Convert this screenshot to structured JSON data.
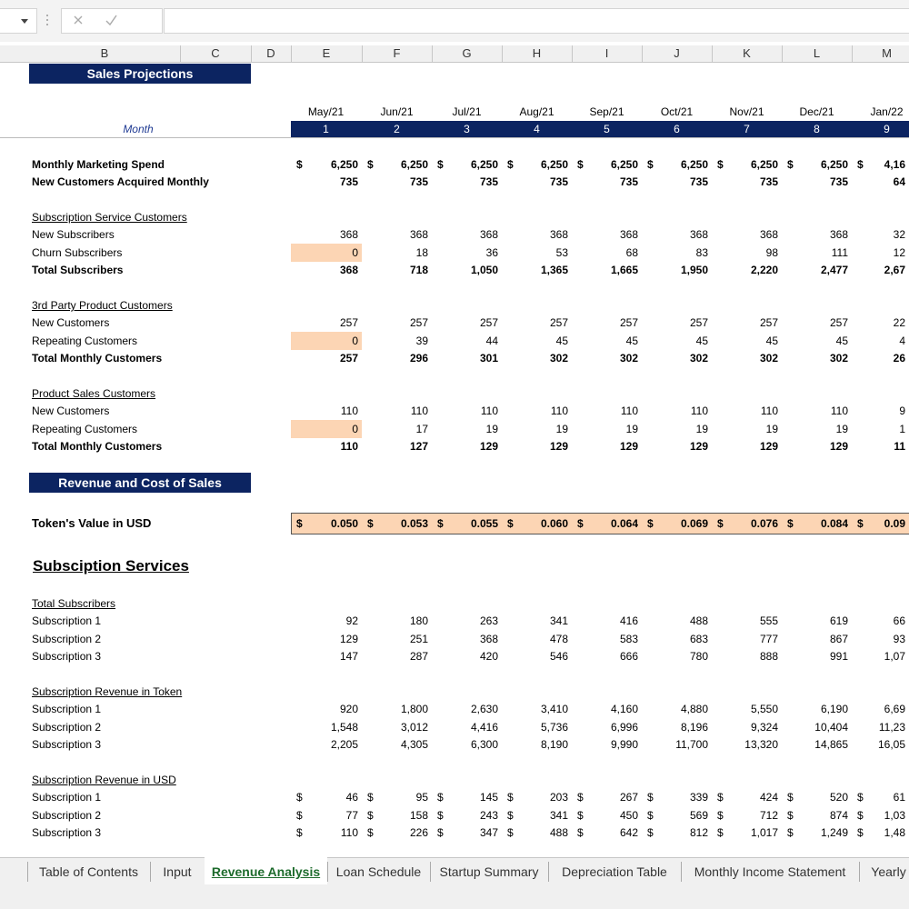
{
  "formula_bar": {
    "function_icon": "fx"
  },
  "column_headers": [
    "B",
    "C",
    "D",
    "E",
    "F",
    "G",
    "H",
    "I",
    "J",
    "K",
    "L",
    "M"
  ],
  "sales_header": "Sales Projections",
  "month_label": "Month",
  "months": [
    "May/21",
    "Jun/21",
    "Jul/21",
    "Aug/21",
    "Sep/21",
    "Oct/21",
    "Nov/21",
    "Dec/21",
    "Jan/22"
  ],
  "month_numbers": [
    1,
    2,
    3,
    4,
    5,
    6,
    7,
    8,
    9
  ],
  "currency_symbol": "$",
  "marketing": {
    "rows": [
      {
        "label": "Monthly Marketing Spend",
        "values": [
          "6,250",
          "6,250",
          "6,250",
          "6,250",
          "6,250",
          "6,250",
          "6,250",
          "6,250",
          "4,16"
        ]
      },
      {
        "label": "New Customers Acquired Monthly",
        "values": [
          "735",
          "735",
          "735",
          "735",
          "735",
          "735",
          "735",
          "735",
          "64"
        ]
      }
    ]
  },
  "customer_groups": [
    {
      "heading": "Subscription Service Customers",
      "rows": [
        {
          "label": "New Subscribers",
          "values": [
            "368",
            "368",
            "368",
            "368",
            "368",
            "368",
            "368",
            "368",
            "32"
          ]
        },
        {
          "label": "Churn Subscribers",
          "values": [
            "0",
            "18",
            "36",
            "53",
            "68",
            "83",
            "98",
            "111",
            "12"
          ]
        },
        {
          "label": "Total Subscribers",
          "values": [
            "368",
            "718",
            "1,050",
            "1,365",
            "1,665",
            "1,950",
            "2,220",
            "2,477",
            "2,67"
          ]
        }
      ]
    },
    {
      "heading": "3rd Party Product Customers",
      "rows": [
        {
          "label": "New Customers",
          "values": [
            "257",
            "257",
            "257",
            "257",
            "257",
            "257",
            "257",
            "257",
            "22"
          ]
        },
        {
          "label": "Repeating Customers",
          "values": [
            "0",
            "39",
            "44",
            "45",
            "45",
            "45",
            "45",
            "45",
            "4"
          ]
        },
        {
          "label": "Total Monthly Customers",
          "values": [
            "257",
            "296",
            "301",
            "302",
            "302",
            "302",
            "302",
            "302",
            "26"
          ]
        }
      ]
    },
    {
      "heading": "Product Sales Customers",
      "rows": [
        {
          "label": "New Customers",
          "values": [
            "110",
            "110",
            "110",
            "110",
            "110",
            "110",
            "110",
            "110",
            "9"
          ]
        },
        {
          "label": "Repeating Customers",
          "values": [
            "0",
            "17",
            "19",
            "19",
            "19",
            "19",
            "19",
            "19",
            "1"
          ]
        },
        {
          "label": "Total Monthly Customers",
          "values": [
            "110",
            "127",
            "129",
            "129",
            "129",
            "129",
            "129",
            "129",
            "11"
          ]
        }
      ]
    }
  ],
  "revenue_header": "Revenue and Cost of Sales",
  "token": {
    "label": "Token's Value in USD",
    "values": [
      "0.050",
      "0.053",
      "0.055",
      "0.060",
      "0.064",
      "0.069",
      "0.076",
      "0.084",
      "0.09"
    ]
  },
  "subscription_title": "Subsciption Services",
  "subscription_groups": [
    {
      "heading": "Total Subscribers",
      "rows": [
        {
          "label": "Subscription 1",
          "values": [
            "92",
            "180",
            "263",
            "341",
            "416",
            "488",
            "555",
            "619",
            "66"
          ]
        },
        {
          "label": "Subscription 2",
          "values": [
            "129",
            "251",
            "368",
            "478",
            "583",
            "683",
            "777",
            "867",
            "93"
          ]
        },
        {
          "label": "Subscription 3",
          "values": [
            "147",
            "287",
            "420",
            "546",
            "666",
            "780",
            "888",
            "991",
            "1,07"
          ]
        }
      ]
    },
    {
      "heading": "Subscription Revenue in Token",
      "rows": [
        {
          "label": "Subscription 1",
          "values": [
            "920",
            "1,800",
            "2,630",
            "3,410",
            "4,160",
            "4,880",
            "5,550",
            "6,190",
            "6,69"
          ]
        },
        {
          "label": "Subscription 2",
          "values": [
            "1,548",
            "3,012",
            "4,416",
            "5,736",
            "6,996",
            "8,196",
            "9,324",
            "10,404",
            "11,23"
          ]
        },
        {
          "label": "Subscription 3",
          "values": [
            "2,205",
            "4,305",
            "6,300",
            "8,190",
            "9,990",
            "11,700",
            "13,320",
            "14,865",
            "16,05"
          ]
        }
      ]
    },
    {
      "heading": "Subscription Revenue in USD",
      "rows": [
        {
          "label": "Subscription 1",
          "values": [
            "46",
            "95",
            "145",
            "203",
            "267",
            "339",
            "424",
            "520",
            "61"
          ]
        },
        {
          "label": "Subscription 2",
          "values": [
            "77",
            "158",
            "243",
            "341",
            "450",
            "569",
            "712",
            "874",
            "1,03"
          ]
        },
        {
          "label": "Subscription 3",
          "values": [
            "110",
            "226",
            "347",
            "488",
            "642",
            "812",
            "1,017",
            "1,249",
            "1,48"
          ]
        }
      ]
    }
  ],
  "sheet_tabs": [
    "Table of Contents",
    "Input",
    "Revenue Analysis",
    "Loan Schedule",
    "Startup Summary",
    "Depreciation Table",
    "Monthly Income Statement",
    "Yearly"
  ],
  "active_tab": 2
}
